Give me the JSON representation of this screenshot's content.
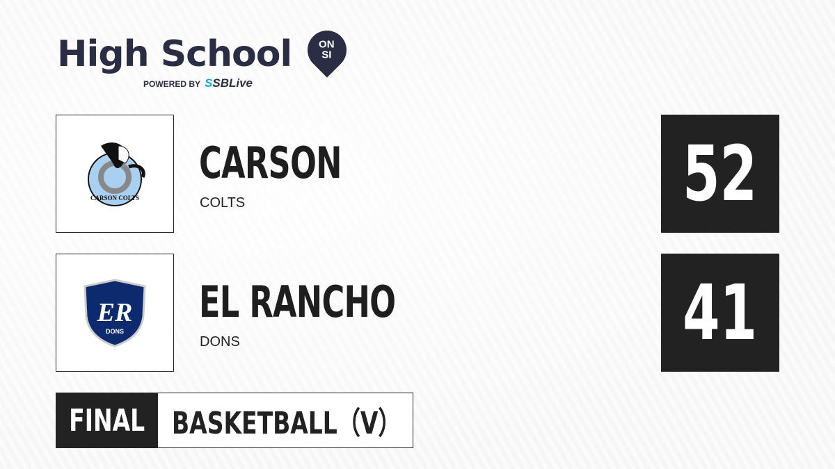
{
  "brand": {
    "title": "High School",
    "badge_top": "ON",
    "badge_bottom": "SI",
    "powered_by": "POWERED BY",
    "partner_prefix": "S",
    "partner": "SBLive"
  },
  "teams": [
    {
      "name": "CARSON",
      "mascot": "COLTS",
      "score": "52",
      "logo_text": "CARSON COLTS",
      "logo_color": "#a9d0f0"
    },
    {
      "name": "EL RANCHO",
      "mascot": "DONS",
      "score": "41",
      "logo_text": "DONS",
      "logo_initials": "ER",
      "logo_color": "#0e2a6e"
    }
  ],
  "status": "FINAL",
  "sport": "BASKETBALL（V）"
}
